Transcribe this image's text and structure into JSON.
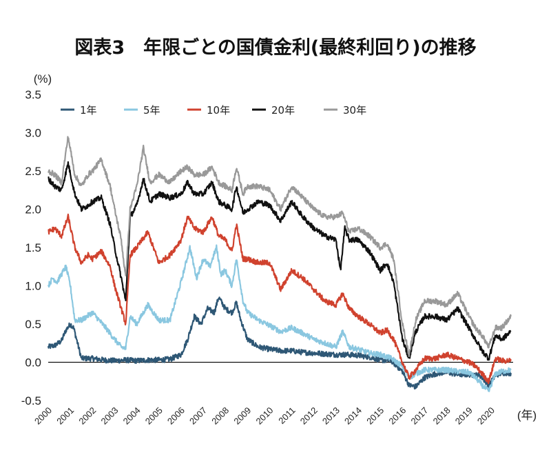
{
  "chart_data": {
    "type": "line",
    "title": "図表3　年限ごとの国債金利(最終利回り)の推移",
    "ylabel": "(%)",
    "xlabel": "(年)",
    "ylim": [
      -0.5,
      3.5
    ],
    "yticks": [
      "3.5",
      "3.0",
      "2.5",
      "2.0",
      "1.5",
      "1.0",
      "0.5",
      "0.0",
      "-0.5"
    ],
    "xlim": [
      2000,
      2021
    ],
    "categories": [
      "2000",
      "2001",
      "2002",
      "2003",
      "2004",
      "2005",
      "2006",
      "2007",
      "2008",
      "2009",
      "2010",
      "2011",
      "2012",
      "2013",
      "2014",
      "2015",
      "2016",
      "2017",
      "2018",
      "2019",
      "2020"
    ],
    "grid": false,
    "legend_position": "top-left",
    "series": [
      {
        "name": "1年",
        "color": "#2e5775",
        "x": [
          2000,
          2000.3,
          2000.6,
          2000.8,
          2001.0,
          2001.15,
          2001.5,
          2002.0,
          2002.5,
          2003.0,
          2003.5,
          2004.0,
          2004.5,
          2005.0,
          2005.5,
          2006.0,
          2006.3,
          2006.6,
          2006.9,
          2007.2,
          2007.5,
          2007.7,
          2008.0,
          2008.3,
          2008.5,
          2008.7,
          2009.0,
          2009.5,
          2010.0,
          2010.5,
          2011.0,
          2011.5,
          2012.0,
          2012.5,
          2013.0,
          2013.5,
          2014.0,
          2014.5,
          2015.0,
          2015.5,
          2016.0,
          2016.3,
          2016.6,
          2017.0,
          2017.5,
          2018.0,
          2018.5,
          2019.0,
          2019.5,
          2019.9,
          2020.2,
          2020.5,
          2020.9
        ],
        "values": [
          0.2,
          0.22,
          0.28,
          0.42,
          0.5,
          0.45,
          0.05,
          0.05,
          0.03,
          0.02,
          0.03,
          0.02,
          0.03,
          0.03,
          0.04,
          0.1,
          0.3,
          0.6,
          0.5,
          0.7,
          0.65,
          0.85,
          0.7,
          0.65,
          0.78,
          0.55,
          0.3,
          0.2,
          0.17,
          0.15,
          0.15,
          0.13,
          0.12,
          0.11,
          0.1,
          0.1,
          0.09,
          0.07,
          0.03,
          0.02,
          -0.12,
          -0.3,
          -0.32,
          -0.2,
          -0.15,
          -0.13,
          -0.16,
          -0.16,
          -0.17,
          -0.3,
          -0.17,
          -0.14,
          -0.14
        ]
      },
      {
        "name": "5年",
        "color": "#8ac7e0",
        "x": [
          2000,
          2000.2,
          2000.4,
          2000.6,
          2000.8,
          2001.0,
          2001.2,
          2001.5,
          2002.0,
          2002.3,
          2002.6,
          2003.0,
          2003.3,
          2003.5,
          2003.7,
          2004.0,
          2004.5,
          2005.0,
          2005.5,
          2006.0,
          2006.4,
          2006.7,
          2007.0,
          2007.3,
          2007.6,
          2007.8,
          2008.0,
          2008.3,
          2008.5,
          2008.8,
          2009.0,
          2009.5,
          2010.0,
          2010.5,
          2011.0,
          2011.5,
          2012.0,
          2012.5,
          2013.0,
          2013.3,
          2013.6,
          2014.0,
          2014.5,
          2015.0,
          2015.5,
          2016.0,
          2016.3,
          2016.6,
          2017.0,
          2017.5,
          2018.0,
          2018.5,
          2019.0,
          2019.3,
          2019.6,
          2019.9,
          2020.2,
          2020.5,
          2020.9
        ],
        "values": [
          1.0,
          1.1,
          1.05,
          1.15,
          1.25,
          1.0,
          0.55,
          0.55,
          0.65,
          0.55,
          0.45,
          0.3,
          0.2,
          0.18,
          0.6,
          0.5,
          0.75,
          0.55,
          0.55,
          1.05,
          1.5,
          1.1,
          1.35,
          1.25,
          1.5,
          1.15,
          1.2,
          1.0,
          1.35,
          0.8,
          0.65,
          0.55,
          0.48,
          0.4,
          0.45,
          0.38,
          0.3,
          0.25,
          0.2,
          0.4,
          0.2,
          0.17,
          0.12,
          0.1,
          0.05,
          -0.05,
          -0.2,
          -0.15,
          -0.1,
          -0.1,
          -0.1,
          -0.12,
          -0.13,
          -0.2,
          -0.3,
          -0.38,
          -0.15,
          -0.12,
          -0.1
        ]
      },
      {
        "name": "10年",
        "color": "#d0422e",
        "x": [
          2000,
          2000.3,
          2000.6,
          2000.9,
          2001.2,
          2001.5,
          2001.8,
          2002.0,
          2002.4,
          2002.8,
          2003.0,
          2003.3,
          2003.5,
          2003.7,
          2004.0,
          2004.5,
          2005.0,
          2005.5,
          2006.0,
          2006.3,
          2006.6,
          2007.0,
          2007.4,
          2007.7,
          2008.0,
          2008.3,
          2008.5,
          2008.8,
          2009.0,
          2009.5,
          2010.0,
          2010.5,
          2011.0,
          2011.5,
          2012.0,
          2012.5,
          2013.0,
          2013.3,
          2013.6,
          2014.0,
          2014.5,
          2015.0,
          2015.3,
          2015.6,
          2016.0,
          2016.3,
          2016.6,
          2017.0,
          2017.5,
          2018.0,
          2018.5,
          2019.0,
          2019.3,
          2019.6,
          2019.9,
          2020.2,
          2020.5,
          2020.9
        ],
        "values": [
          1.7,
          1.75,
          1.65,
          1.9,
          1.5,
          1.3,
          1.4,
          1.35,
          1.45,
          1.25,
          1.0,
          0.7,
          0.5,
          1.4,
          1.5,
          1.7,
          1.3,
          1.4,
          1.6,
          1.9,
          1.75,
          1.7,
          1.9,
          1.65,
          1.6,
          1.45,
          1.8,
          1.35,
          1.35,
          1.3,
          1.3,
          0.95,
          1.2,
          1.1,
          0.95,
          0.8,
          0.75,
          0.9,
          0.7,
          0.6,
          0.5,
          0.38,
          0.42,
          0.3,
          0.0,
          -0.2,
          -0.1,
          0.05,
          0.05,
          0.1,
          0.05,
          0.0,
          -0.05,
          -0.15,
          -0.25,
          0.05,
          0.02,
          0.02
        ]
      },
      {
        "name": "20年",
        "color": "#111111",
        "x": [
          2000,
          2000.3,
          2000.6,
          2000.9,
          2001.2,
          2001.5,
          2001.8,
          2002.0,
          2002.4,
          2002.8,
          2003.0,
          2003.3,
          2003.5,
          2003.7,
          2004.0,
          2004.3,
          2004.6,
          2005.0,
          2005.5,
          2006.0,
          2006.3,
          2006.6,
          2007.0,
          2007.4,
          2007.7,
          2008.0,
          2008.3,
          2008.5,
          2008.8,
          2009.0,
          2009.5,
          2010.0,
          2010.5,
          2011.0,
          2011.5,
          2012.0,
          2012.5,
          2013.0,
          2013.2,
          2013.4,
          2013.6,
          2014.0,
          2014.5,
          2015.0,
          2015.3,
          2015.6,
          2016.0,
          2016.3,
          2016.6,
          2017.0,
          2017.5,
          2018.0,
          2018.5,
          2019.0,
          2019.3,
          2019.6,
          2019.9,
          2020.2,
          2020.5,
          2020.9
        ],
        "values": [
          2.4,
          2.3,
          2.25,
          2.6,
          2.2,
          2.0,
          2.05,
          2.1,
          2.15,
          1.8,
          1.5,
          1.1,
          0.8,
          1.9,
          2.05,
          2.4,
          2.1,
          2.2,
          2.15,
          2.2,
          2.35,
          2.2,
          2.2,
          2.35,
          2.1,
          2.05,
          2.0,
          2.3,
          1.95,
          2.0,
          2.1,
          2.05,
          1.85,
          2.1,
          1.9,
          1.75,
          1.65,
          1.6,
          1.2,
          1.75,
          1.6,
          1.6,
          1.45,
          1.2,
          1.3,
          1.05,
          0.3,
          0.05,
          0.4,
          0.6,
          0.6,
          0.55,
          0.7,
          0.45,
          0.3,
          0.15,
          0.05,
          0.35,
          0.3,
          0.4
        ]
      },
      {
        "name": "30年",
        "color": "#999999",
        "x": [
          2000,
          2000.3,
          2000.6,
          2000.9,
          2001.2,
          2001.5,
          2001.8,
          2002.0,
          2002.4,
          2002.8,
          2003.0,
          2003.3,
          2003.5,
          2003.7,
          2004.0,
          2004.3,
          2004.6,
          2005.0,
          2005.5,
          2006.0,
          2006.3,
          2006.6,
          2007.0,
          2007.4,
          2007.7,
          2008.0,
          2008.3,
          2008.5,
          2008.8,
          2009.0,
          2009.5,
          2010.0,
          2010.5,
          2011.0,
          2011.5,
          2012.0,
          2012.5,
          2013.0,
          2013.3,
          2013.6,
          2014.0,
          2014.5,
          2015.0,
          2015.3,
          2015.6,
          2016.0,
          2016.3,
          2016.6,
          2017.0,
          2017.5,
          2018.0,
          2018.5,
          2019.0,
          2019.3,
          2019.6,
          2019.9,
          2020.2,
          2020.5,
          2020.9
        ],
        "values": [
          2.5,
          2.45,
          2.35,
          2.95,
          2.45,
          2.3,
          2.45,
          2.5,
          2.65,
          2.3,
          2.0,
          1.6,
          1.1,
          2.0,
          2.3,
          2.8,
          2.35,
          2.45,
          2.35,
          2.5,
          2.55,
          2.45,
          2.45,
          2.55,
          2.35,
          2.3,
          2.25,
          2.55,
          2.2,
          2.3,
          2.3,
          2.25,
          2.0,
          2.3,
          2.15,
          2.0,
          1.9,
          1.9,
          1.95,
          1.7,
          1.75,
          1.65,
          1.5,
          1.55,
          1.35,
          0.5,
          0.1,
          0.55,
          0.8,
          0.8,
          0.75,
          0.9,
          0.6,
          0.45,
          0.35,
          0.2,
          0.45,
          0.45,
          0.6
        ]
      }
    ]
  }
}
